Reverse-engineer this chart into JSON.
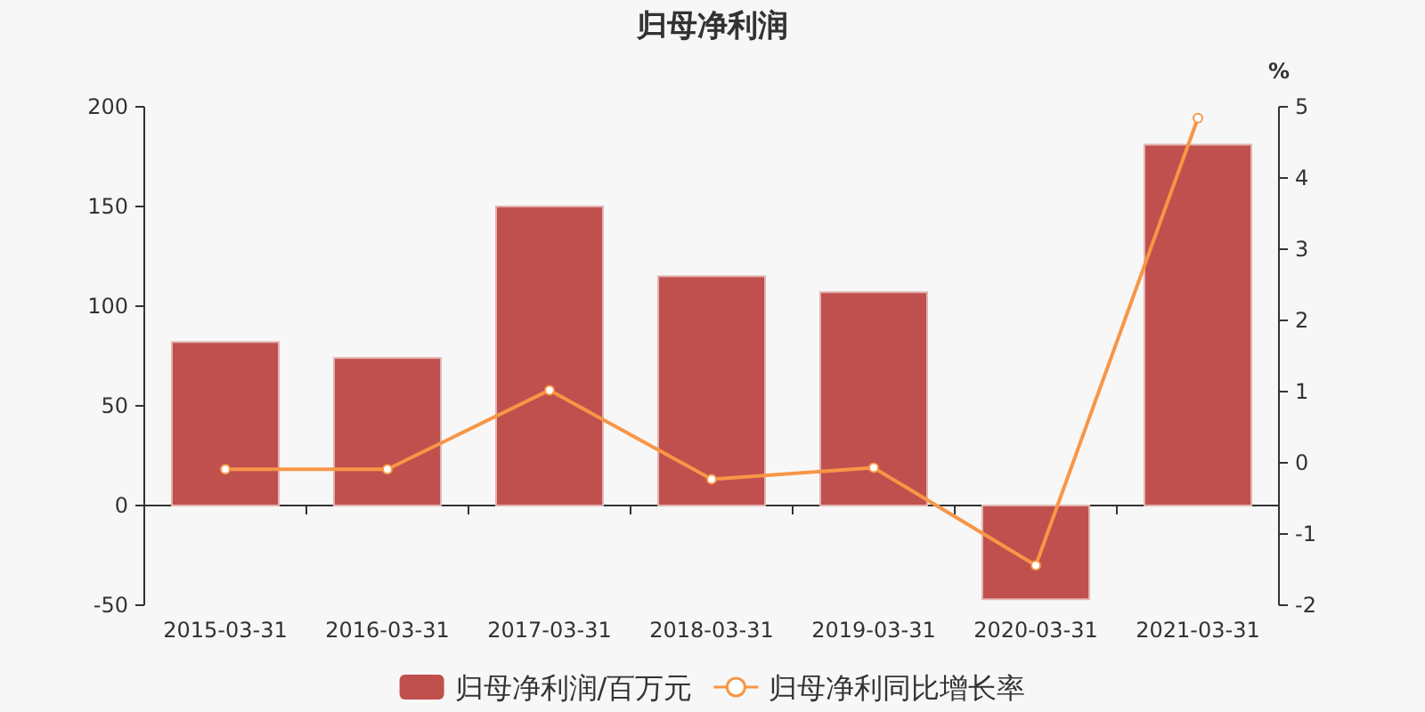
{
  "chart_data": {
    "type": "bar",
    "title": "归母净利润",
    "y2label": "%",
    "categories": [
      "2015-03-31",
      "2016-03-31",
      "2017-03-31",
      "2018-03-31",
      "2019-03-31",
      "2020-03-31",
      "2021-03-31"
    ],
    "series": [
      {
        "name": "归母净利润/百万元",
        "color": "#c0504d",
        "values": [
          82,
          74,
          150,
          115,
          107,
          -47,
          181
        ]
      },
      {
        "name": "归母净利同比增长率",
        "type": "line",
        "axis": "y2",
        "color": "#f79646",
        "marker": "circle",
        "values": [
          -0.09,
          -0.09,
          1.02,
          -0.23,
          -0.07,
          -1.44,
          4.84
        ]
      }
    ],
    "ylim": [
      -50,
      200
    ],
    "yticks": [
      -50,
      0,
      50,
      100,
      150,
      200
    ],
    "y2lim": [
      -2,
      5
    ],
    "y2ticks": [
      -2,
      -1,
      0,
      1,
      2,
      3,
      4,
      5
    ],
    "legend": "bottom"
  }
}
